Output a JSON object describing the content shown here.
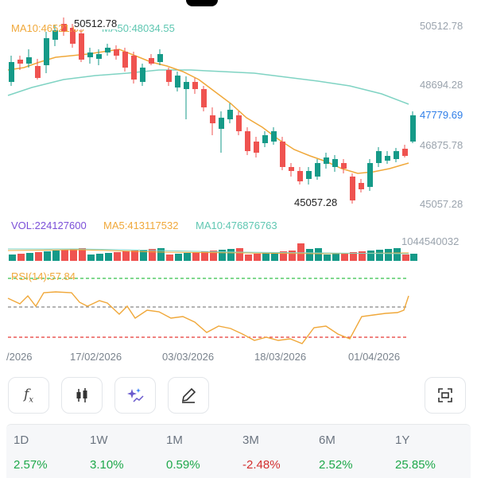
{
  "chart": {
    "ma_legend": {
      "ma10": "MA10:46521.65",
      "ma50": "MA50:48034.55"
    },
    "high_marker": "50512.78",
    "low_marker": "45057.28",
    "price_axis": [
      "50512.78",
      "48694.28",
      "47779.69",
      "46875.78",
      "45057.28"
    ],
    "current_price": "47779.69",
    "volume_legend": {
      "vol": "VOL:224127600",
      "ma5": "MA5:413117532",
      "ma10": "MA10:476876763"
    },
    "volume_axis_max": "1044540032",
    "rsi_legend": "RSI(14):57.84",
    "dates": [
      "/2026",
      "17/02/2026",
      "03/03/2026",
      "18/03/2026",
      "01/04/2026"
    ],
    "colors": {
      "up": "#159a88",
      "down": "#ef5350",
      "ma10": "#f0a83a",
      "ma50": "#7fd3c3",
      "rsi": "#f0a83a",
      "overbought": "#35c04a",
      "oversold": "#e53935",
      "mid": "#888888",
      "accent_price": "#2f7ee8"
    }
  },
  "toolbar": {
    "icons": [
      "function-icon",
      "candlestick-icon",
      "ai-sparkle-icon",
      "draw-pencil-icon",
      "fullscreen-icon"
    ]
  },
  "performance": [
    {
      "period": "1D",
      "value": "2.57%",
      "trend": "up"
    },
    {
      "period": "1W",
      "value": "3.10%",
      "trend": "up"
    },
    {
      "period": "1M",
      "value": "0.59%",
      "trend": "up"
    },
    {
      "period": "3M",
      "value": "-2.48%",
      "trend": "down"
    },
    {
      "period": "6M",
      "value": "2.52%",
      "trend": "up"
    },
    {
      "period": "1Y",
      "value": "25.85%",
      "trend": "up"
    }
  ]
}
